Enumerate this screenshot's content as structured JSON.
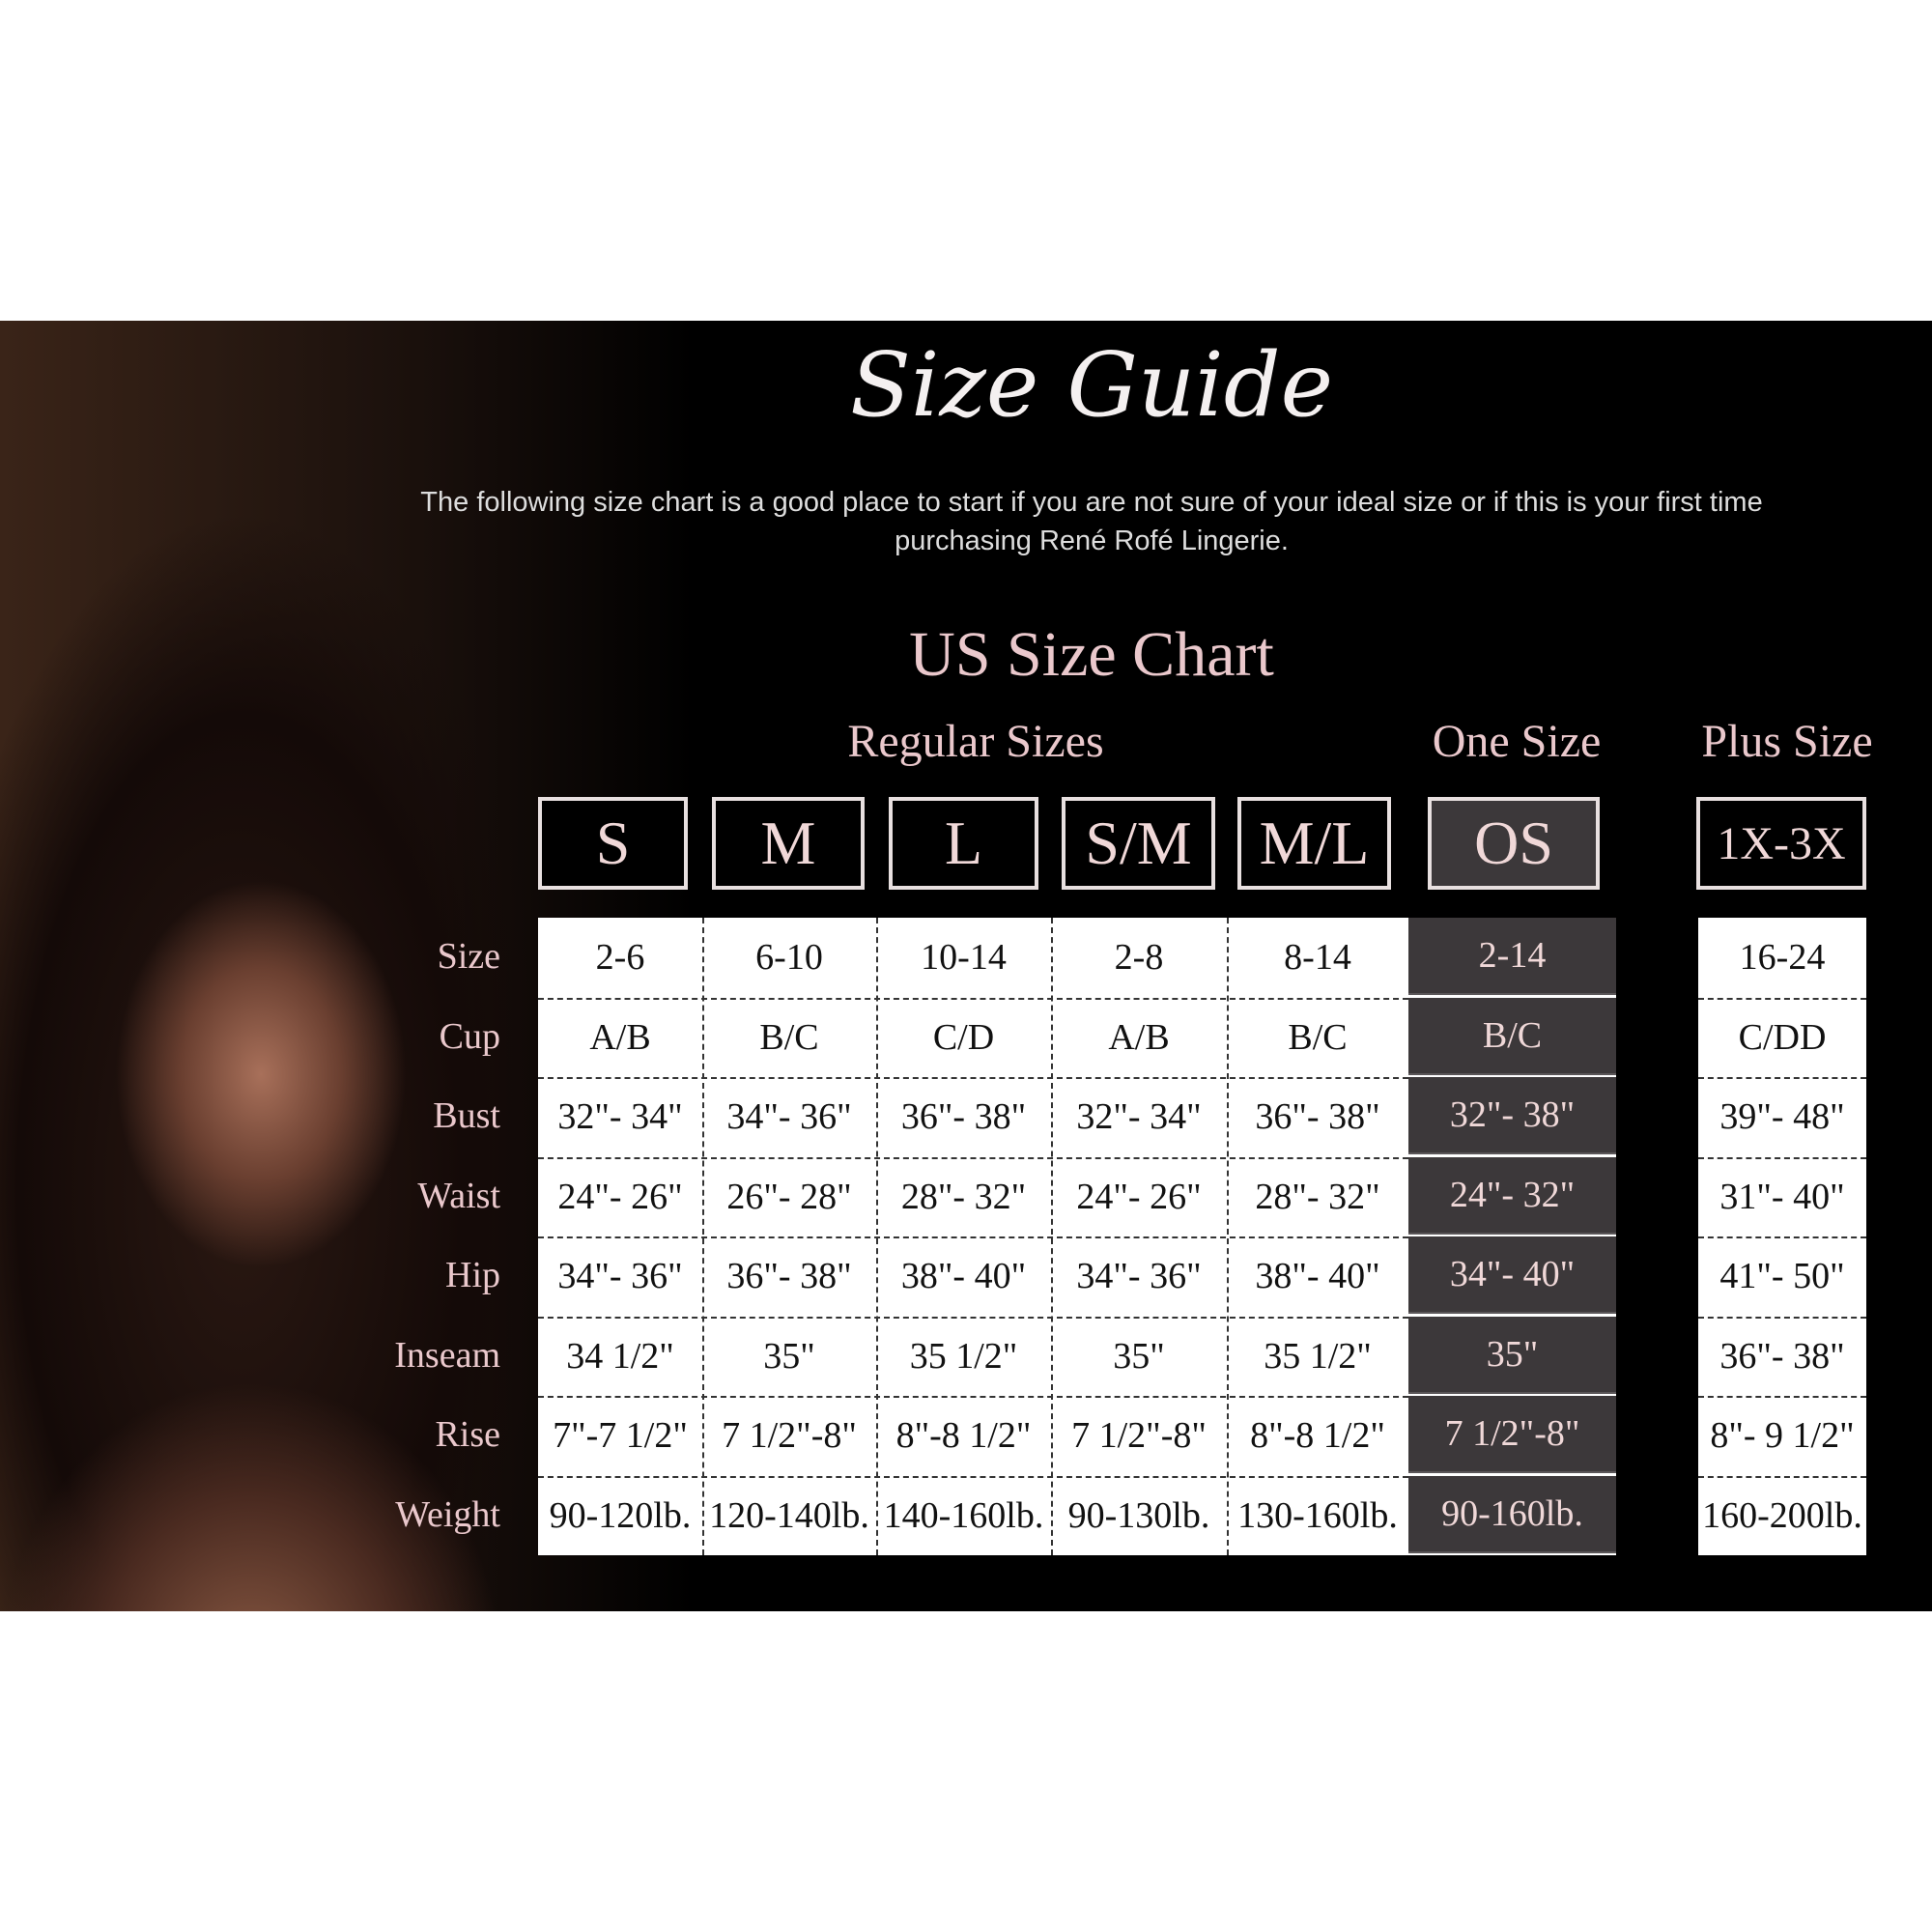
{
  "title": "Size Guide",
  "intro": "The following size chart is a good place to start if you are not sure of your ideal size or if this is your first time purchasing René Rofé Lingerie.",
  "chart_title": "US Size Chart",
  "groups": {
    "regular": "Regular Sizes",
    "one": "One Size",
    "plus": "Plus Size"
  },
  "row_labels": [
    "Size",
    "Cup",
    "Bust",
    "Waist",
    "Hip",
    "Inseam",
    "Rise",
    "Weight"
  ],
  "columns": [
    {
      "label": "S",
      "values": [
        "2-6",
        "A/B",
        "32\"- 34\"",
        "24\"- 26\"",
        "34\"- 36\"",
        "34 1/2\"",
        "7\"-7 1/2\"",
        "90-120lb."
      ]
    },
    {
      "label": "M",
      "values": [
        "6-10",
        "B/C",
        "34\"- 36\"",
        "26\"- 28\"",
        "36\"- 38\"",
        "35\"",
        "7 1/2\"-8\"",
        "120-140lb."
      ]
    },
    {
      "label": "L",
      "values": [
        "10-14",
        "C/D",
        "36\"- 38\"",
        "28\"- 32\"",
        "38\"- 40\"",
        "35 1/2\"",
        "8\"-8 1/2\"",
        "140-160lb."
      ]
    },
    {
      "label": "S/M",
      "values": [
        "2-8",
        "A/B",
        "32\"- 34\"",
        "24\"- 26\"",
        "34\"- 36\"",
        "35\"",
        "7 1/2\"-8\"",
        "90-130lb."
      ]
    },
    {
      "label": "M/L",
      "values": [
        "8-14",
        "B/C",
        "36\"- 38\"",
        "28\"- 32\"",
        "38\"- 40\"",
        "35 1/2\"",
        "8\"-8 1/2\"",
        "130-160lb."
      ]
    },
    {
      "label": "OS",
      "values": [
        "2-14",
        "B/C",
        "32\"- 38\"",
        "24\"- 32\"",
        "34\"- 40\"",
        "35\"",
        "7 1/2\"-8\"",
        "90-160lb."
      ]
    },
    {
      "label": "1X-3X",
      "values": [
        "16-24",
        "C/DD",
        "39\"- 48\"",
        "31\"- 40\"",
        "41\"- 50\"",
        "36\"- 38\"",
        "8\"- 9 1/2\"",
        "160-200lb."
      ]
    }
  ],
  "colors": {
    "background": "#000000",
    "accent_pink": "#eac8cc",
    "one_size_cell": "#3c383a"
  }
}
